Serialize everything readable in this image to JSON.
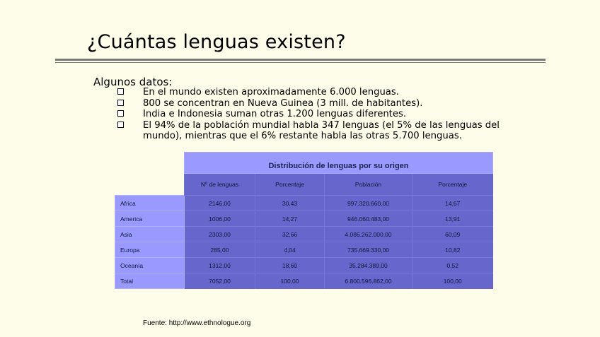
{
  "title": "¿Cuántas lenguas existen?",
  "subheading": "Algunos datos:",
  "bullets": [
    "En el mundo existen aproximadamente 6.000 lenguas.",
    "800 se concentran en Nueva Guinea (3 mill. de habitantes).",
    "India e Indonesia suman otras 1.200 lenguas diferentes.",
    "El 94% de la población mundial habla 347 lenguas (el 5% de las lenguas del mundo), mientras que el 6% restante habla las otras 5.700 lenguas."
  ],
  "table": {
    "caption": "Distribución de lenguas por su origen",
    "columns": [
      "Nº de lenguas",
      "Porcentaje",
      "Población",
      "Porcentaje"
    ],
    "rows": [
      {
        "label": "Africa",
        "values": [
          "2146,00",
          "30,43",
          "997.320.660,00",
          "14,67"
        ]
      },
      {
        "label": "America",
        "values": [
          "1006,00",
          "14,27",
          "946.060.483,00",
          "13,91"
        ]
      },
      {
        "label": "Asia",
        "values": [
          "2303,00",
          "32,66",
          "4.086.262.000,00",
          "60,09"
        ]
      },
      {
        "label": "Europa",
        "values": [
          "285,00",
          "4,04",
          "735.669.330,00",
          "10,82"
        ]
      },
      {
        "label": "Oceanía",
        "values": [
          "1312,00",
          "18,60",
          "35.284.389,00",
          "0,52"
        ]
      },
      {
        "label": "Total",
        "values": [
          "7052,00",
          "100,00",
          "6.800.596.862,00",
          "100,00"
        ]
      }
    ]
  },
  "source": "Fuente: http://www.ethnologue.org",
  "colors": {
    "background": "#fefde9",
    "header_light": "#9999ff",
    "cell_dark": "#6666cc"
  },
  "icons": {
    "bullet": "checkbox-square-icon"
  }
}
